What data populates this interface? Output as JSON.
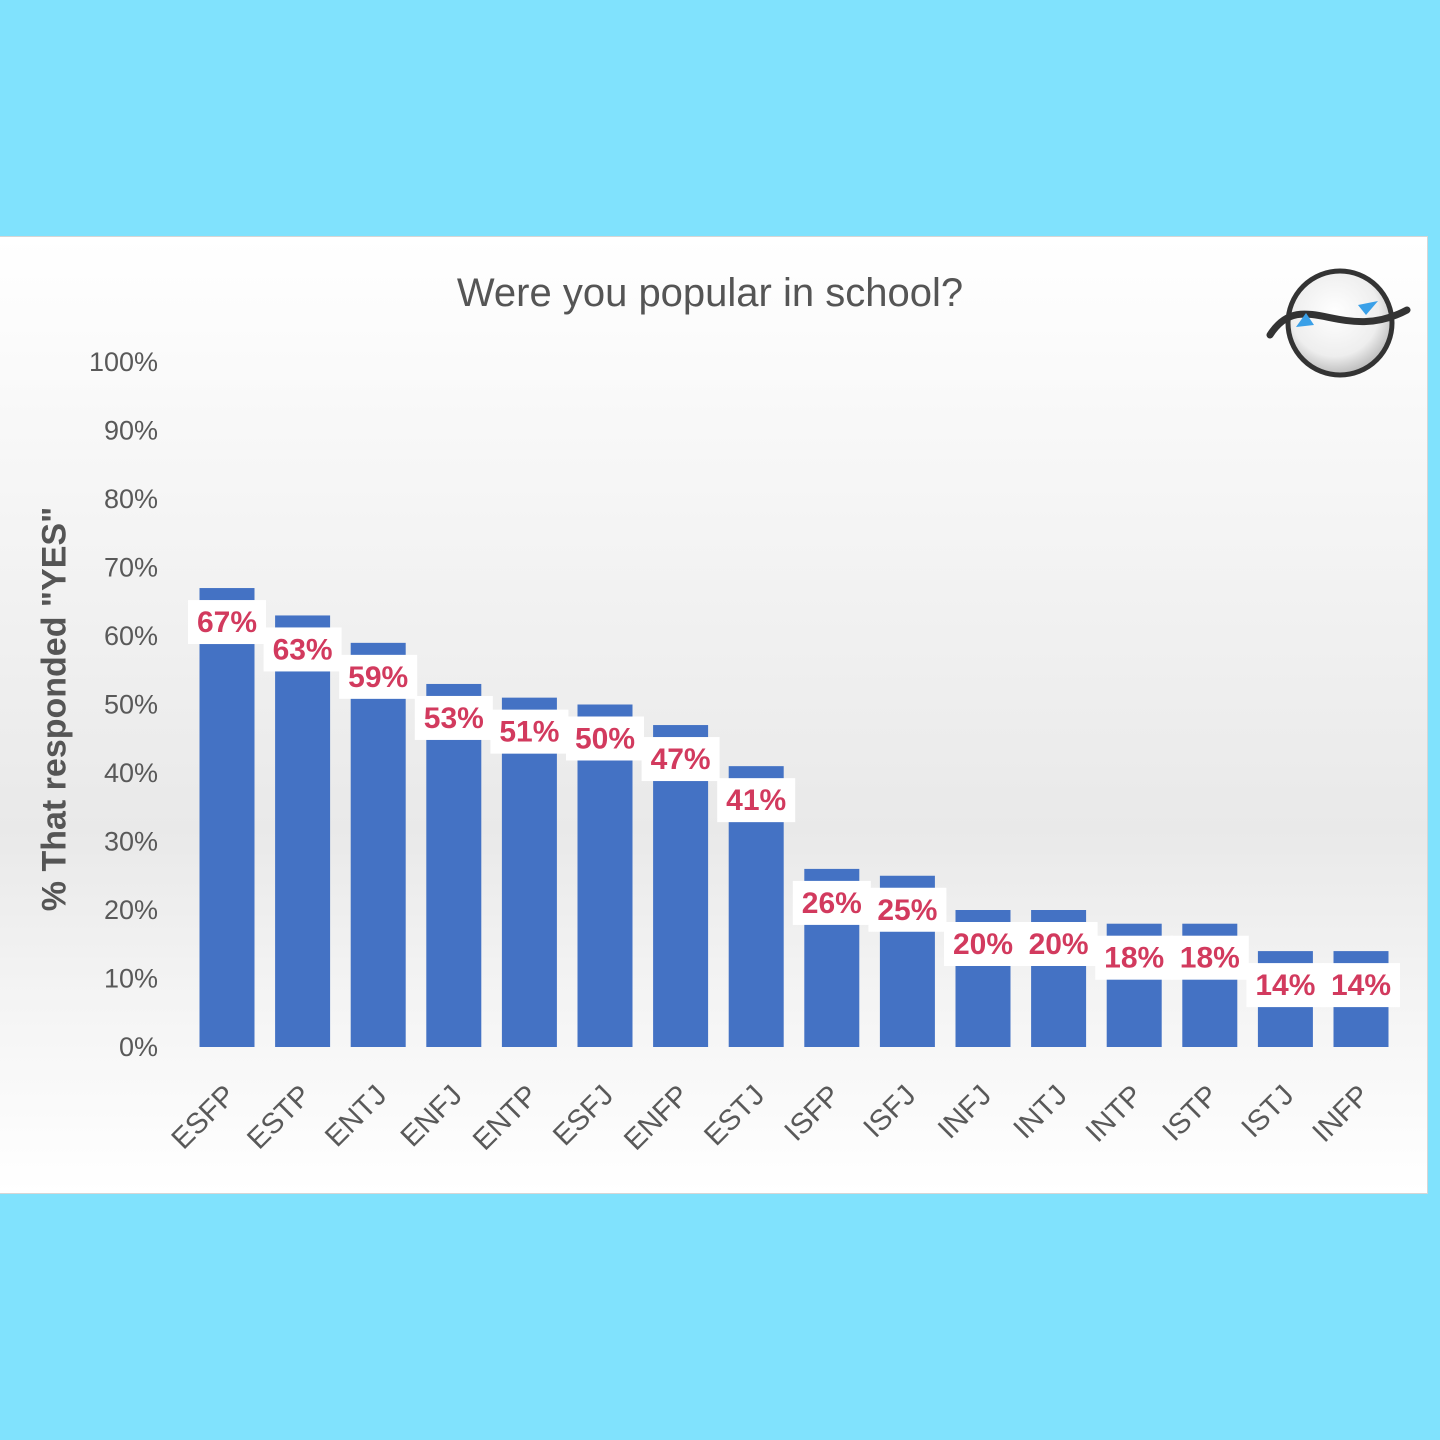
{
  "chart_data": {
    "type": "bar",
    "title": "Were you popular in school?",
    "xlabel": "",
    "ylabel": "% That responded \"YES\"",
    "ylim": [
      0,
      100
    ],
    "yticks": [
      "0%",
      "10%",
      "20%",
      "30%",
      "40%",
      "50%",
      "60%",
      "70%",
      "80%",
      "90%",
      "100%"
    ],
    "grid": false,
    "legend": "none",
    "categories": [
      "ESFP",
      "ESTP",
      "ENTJ",
      "ENFJ",
      "ENTP",
      "ESFJ",
      "ENFP",
      "ESTJ",
      "ISFP",
      "ISFJ",
      "INFJ",
      "INTJ",
      "INTP",
      "ISTP",
      "ISTJ",
      "INFP"
    ],
    "values": [
      67,
      63,
      59,
      53,
      51,
      50,
      47,
      41,
      26,
      25,
      20,
      20,
      18,
      18,
      14,
      14
    ],
    "data_labels": [
      "67%",
      "63%",
      "59%",
      "53%",
      "51%",
      "50%",
      "47%",
      "41%",
      "26%",
      "25%",
      "20%",
      "20%",
      "18%",
      "18%",
      "14%",
      "14%"
    ],
    "colors": {
      "bar": "#4472c4",
      "label_text": "#d23a5e",
      "axis_text": "#595959"
    }
  }
}
